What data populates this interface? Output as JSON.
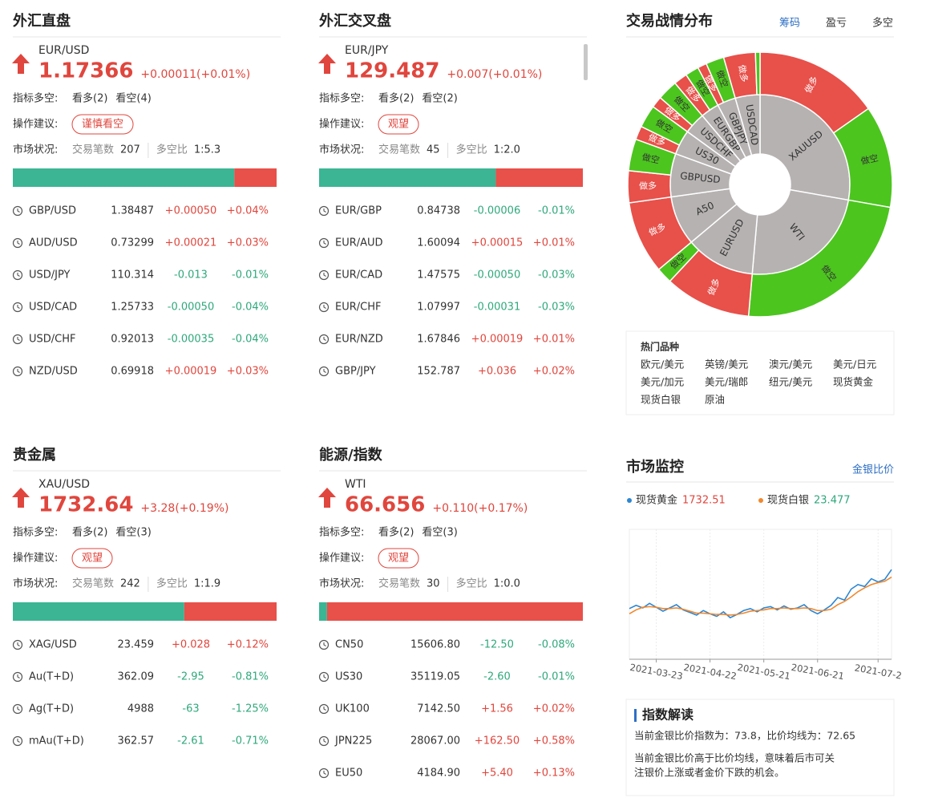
{
  "panels": [
    {
      "title": "外汇直盘",
      "symbol": "EUR/USD",
      "price": "1.17366",
      "change": "+0.00011(+0.01%)",
      "indicator_label": "指标多空:",
      "bull": "看多(2)",
      "bear": "看空(4)",
      "advice_label": "操作建议:",
      "advice": "谨慎看空",
      "status_label": "市场状况:",
      "trades_label": "交易笔数",
      "trades": 207,
      "ratio_label": "多空比",
      "ratio": "1:5.3",
      "bar_long": 84,
      "rows": [
        [
          "GBP/USD",
          "1.38487",
          "+0.00050",
          "+0.04%"
        ],
        [
          "AUD/USD",
          "0.73299",
          "+0.00021",
          "+0.03%"
        ],
        [
          "USD/JPY",
          "110.314",
          "-0.013",
          "-0.01%"
        ],
        [
          "USD/CAD",
          "1.25733",
          "-0.00050",
          "-0.04%"
        ],
        [
          "USD/CHF",
          "0.92013",
          "-0.00035",
          "-0.04%"
        ],
        [
          "NZD/USD",
          "0.69918",
          "+0.00019",
          "+0.03%"
        ]
      ]
    },
    {
      "title": "外汇交叉盘",
      "symbol": "EUR/JPY",
      "price": "129.487",
      "change": "+0.007(+0.01%)",
      "indicator_label": "指标多空:",
      "bull": "看多(2)",
      "bear": "看空(2)",
      "advice_label": "操作建议:",
      "advice": "观望",
      "status_label": "市场状况:",
      "trades_label": "交易笔数",
      "trades": 45,
      "ratio_label": "多空比",
      "ratio": "1:2.0",
      "bar_long": 67,
      "rows": [
        [
          "EUR/GBP",
          "0.84738",
          "-0.00006",
          "-0.01%"
        ],
        [
          "EUR/AUD",
          "1.60094",
          "+0.00015",
          "+0.01%"
        ],
        [
          "EUR/CAD",
          "1.47575",
          "-0.00050",
          "-0.03%"
        ],
        [
          "EUR/CHF",
          "1.07997",
          "-0.00031",
          "-0.03%"
        ],
        [
          "EUR/NZD",
          "1.67846",
          "+0.00019",
          "+0.01%"
        ],
        [
          "GBP/JPY",
          "152.787",
          "+0.036",
          "+0.02%"
        ]
      ]
    },
    {
      "title": "贵金属",
      "symbol": "XAU/USD",
      "price": "1732.64",
      "change": "+3.28(+0.19%)",
      "indicator_label": "指标多空:",
      "bull": "看多(2)",
      "bear": "看空(3)",
      "advice_label": "操作建议:",
      "advice": "观望",
      "status_label": "市场状况:",
      "trades_label": "交易笔数",
      "trades": 242,
      "ratio_label": "多空比",
      "ratio": "1:1.9",
      "bar_long": 65,
      "rows": [
        [
          "XAG/USD",
          "23.459",
          "+0.028",
          "+0.12%"
        ],
        [
          "Au(T+D)",
          "362.09",
          "-2.95",
          "-0.81%"
        ],
        [
          "Ag(T+D)",
          "4988",
          "-63",
          "-1.25%"
        ],
        [
          "mAu(T+D)",
          "362.57",
          "-2.61",
          "-0.71%"
        ]
      ]
    },
    {
      "title": "能源/指数",
      "symbol": "WTI",
      "price": "66.656",
      "change": "+0.110(+0.17%)",
      "indicator_label": "指标多空:",
      "bull": "看多(2)",
      "bear": "看空(3)",
      "advice_label": "操作建议:",
      "advice": "观望",
      "status_label": "市场状况:",
      "trades_label": "交易笔数",
      "trades": 30,
      "ratio_label": "多空比",
      "ratio": "1:0.0",
      "bar_long": 3,
      "rows": [
        [
          "CN50",
          "15606.80",
          "-12.50",
          "-0.08%"
        ],
        [
          "US30",
          "35119.05",
          "-2.60",
          "-0.01%"
        ],
        [
          "UK100",
          "7142.50",
          "+1.56",
          "+0.02%"
        ],
        [
          "JPN225",
          "28067.00",
          "+162.50",
          "+0.58%"
        ],
        [
          "EU50",
          "4184.90",
          "+5.40",
          "+0.13%"
        ]
      ]
    }
  ],
  "distribution": {
    "title": "交易战情分布",
    "tabs": [
      "筹码",
      "盈亏",
      "多空"
    ]
  },
  "hot": {
    "title": "热门品种",
    "items": [
      "欧元/美元",
      "英镑/美元",
      "澳元/美元",
      "美元/日元",
      "美元/加元",
      "美元/瑞郎",
      "纽元/美元",
      "现货黄金",
      "现货白银",
      "原油"
    ]
  },
  "monitor": {
    "title": "市场监控",
    "link": "金银比价",
    "items": [
      {
        "name": "现货黄金",
        "value": "1732.51",
        "color": "#2e86d1",
        "value_color": "#e0463d"
      },
      {
        "name": "现货白银",
        "value": "23.477",
        "color": "#f0882e",
        "value_color": "#2fa87c"
      }
    ]
  },
  "interpret": {
    "title": "指数解读",
    "lines": [
      "当前金银比价指数为：73.8，比价均线为：72.65",
      "当前金银比价高于比价均线，意味着后市可关",
      "注银价上涨或者金价下跌的机会。"
    ]
  },
  "chart_data": [
    {
      "type": "sunburst",
      "categories": [
        "XAUUSD",
        "WTI",
        "EURUSD",
        "A50",
        "GBPUSD",
        "US30",
        "USDCHF",
        "EURGBP",
        "GBPJPY",
        "USDCAD"
      ],
      "values": [
        100,
        85,
        45,
        32,
        28,
        16,
        14,
        12,
        12,
        16
      ],
      "color": "#b7b2b2",
      "series": [
        {
          "name": "做多",
          "color": "#e8504a",
          "values": [
            55,
            null,
            38,
            32,
            14,
            6,
            5,
            6,
            4,
            14
          ]
        },
        {
          "name": "做空",
          "color": "#4cc51f",
          "values": [
            45,
            85,
            7,
            null,
            14,
            10,
            9,
            6,
            8,
            2
          ]
        }
      ]
    },
    {
      "type": "line",
      "categories": [
        null,
        null,
        null,
        null,
        "2021-03-23",
        null,
        null,
        null,
        null,
        null,
        null,
        null,
        "2021-04-22",
        null,
        null,
        null,
        null,
        null,
        null,
        null,
        "2021-05-21",
        null,
        null,
        null,
        null,
        null,
        null,
        null,
        "2021-06-21",
        null,
        null,
        null,
        null,
        null,
        null,
        null,
        null,
        "2021-07-2",
        null,
        null
      ],
      "ylim": [
        60,
        80
      ],
      "grid": true,
      "series": [
        {
          "color": "#2e86d1",
          "values": [
            67.8,
            68.3,
            67.9,
            68.6,
            68.0,
            67.4,
            67.9,
            68.4,
            67.6,
            67.2,
            66.8,
            67.5,
            67.0,
            66.6,
            67.3,
            66.4,
            66.9,
            67.5,
            67.8,
            67.3,
            67.9,
            68.1,
            67.6,
            68.2,
            67.7,
            67.9,
            68.4,
            67.5,
            67.0,
            67.6,
            68.3,
            69.5,
            69.1,
            70.8,
            71.5,
            71.2,
            72.4,
            71.9,
            72.3,
            73.8
          ]
        },
        {
          "color": "#f0882e",
          "values": [
            67.0,
            67.6,
            68.0,
            68.1,
            68.0,
            67.8,
            67.8,
            67.9,
            67.7,
            67.4,
            67.1,
            67.1,
            67.0,
            66.9,
            66.9,
            66.8,
            66.9,
            67.1,
            67.4,
            67.5,
            67.6,
            67.8,
            67.8,
            67.9,
            67.8,
            67.8,
            67.9,
            67.8,
            67.5,
            67.5,
            67.7,
            68.4,
            68.9,
            69.6,
            70.4,
            71.0,
            71.5,
            71.8,
            72.0,
            72.65
          ]
        }
      ]
    }
  ]
}
